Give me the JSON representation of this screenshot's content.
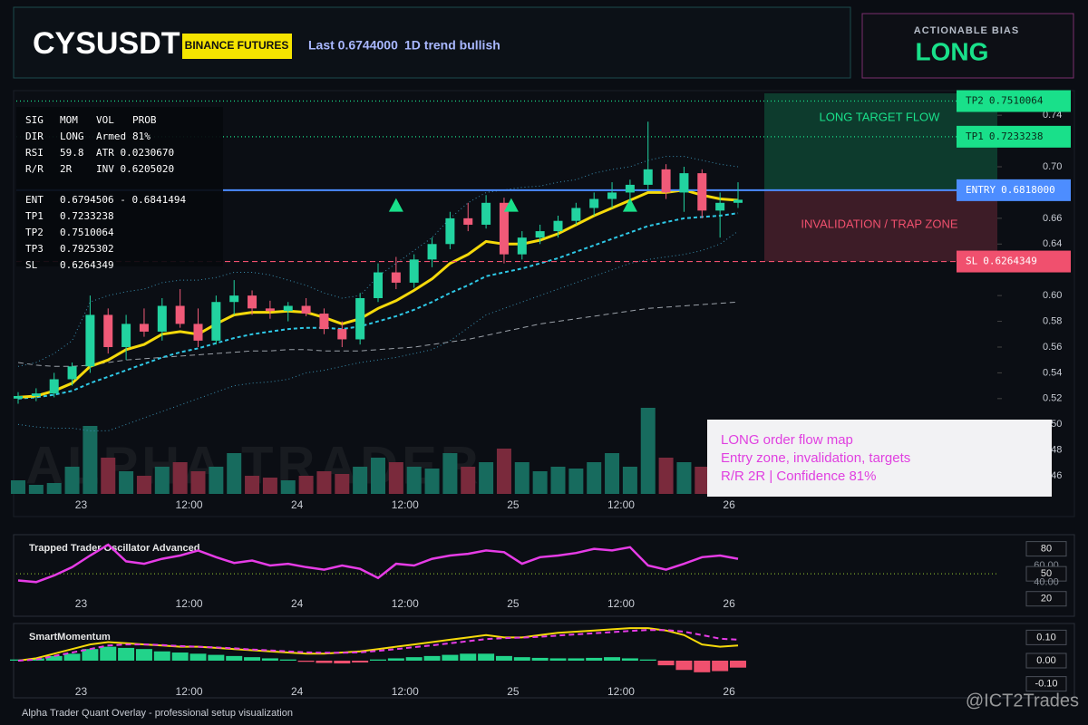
{
  "header": {
    "symbol": "CYSUSDT",
    "badge": "BINANCE FUTURES",
    "last": "Last 0.6744000",
    "trend": "1D trend bullish"
  },
  "bias": {
    "label": "ACTIONABLE BIAS",
    "value": "LONG"
  },
  "info_table": {
    "rows": [
      [
        "SIG",
        "MOM",
        "VOL",
        "PROB"
      ],
      [
        "DIR",
        "LONG",
        "Armed",
        "81%"
      ],
      [
        "RSI",
        "59.8",
        "ATR 0.0230670"
      ],
      [
        "R/R",
        "2R",
        "INV 0.6205020"
      ],
      [
        "ENT",
        "0.6794506 - 0.6841494"
      ],
      [
        "TP1",
        "0.7233238"
      ],
      [
        "TP2",
        "0.7510064"
      ],
      [
        "TP3",
        "0.7925302"
      ],
      [
        "SL",
        "0.6264349"
      ]
    ]
  },
  "overlay_box": {
    "lines": [
      "LONG order flow map",
      "Entry zone, invalidation, targets",
      "R/R 2R | Confidence 81%"
    ]
  },
  "footer": "Alpha Trader Quant Overlay - professional setup visualization",
  "credit": "@ICT2Trades",
  "chart_data": [
    {
      "type": "candlestick",
      "watermark": "ALPHA TRADER",
      "xticks": [
        {
          "value": 3.5,
          "label": "23"
        },
        {
          "value": 9.5,
          "label": "12:00"
        },
        {
          "value": 15.5,
          "label": "24"
        },
        {
          "value": 21.5,
          "label": "12:00"
        },
        {
          "value": 27.5,
          "label": "25"
        },
        {
          "value": 33.5,
          "label": "12:00"
        },
        {
          "value": 39.5,
          "label": "26"
        }
      ],
      "ylim": [
        0.446,
        0.757
      ],
      "yticks": [
        {
          "value": 0.46,
          "label": "0.46"
        },
        {
          "value": 0.48,
          "label": "0.48"
        },
        {
          "value": 0.5,
          "label": "0.50"
        },
        {
          "value": 0.52,
          "label": "0.52"
        },
        {
          "value": 0.54,
          "label": "0.54"
        },
        {
          "value": 0.56,
          "label": "0.56"
        },
        {
          "value": 0.58,
          "label": "0.58"
        },
        {
          "value": 0.6,
          "label": "0.60"
        },
        {
          "value": 0.62,
          "label": "0.62"
        },
        {
          "value": 0.64,
          "label": "0.64"
        },
        {
          "value": 0.66,
          "label": "0.66"
        },
        {
          "value": 0.68,
          "label": "0.68"
        },
        {
          "value": 0.7,
          "label": "0.70"
        },
        {
          "value": 0.72,
          "label": "0.72"
        },
        {
          "value": 0.74,
          "label": "0.74"
        }
      ],
      "up_color": "#22d3a0",
      "down_color": "#f05a78",
      "open": [
        0.52,
        0.522,
        0.524,
        0.535,
        0.545,
        0.585,
        0.56,
        0.578,
        0.572,
        0.592,
        0.578,
        0.565,
        0.595,
        0.6,
        0.59,
        0.588,
        0.592,
        0.586,
        0.574,
        0.566,
        0.598,
        0.618,
        0.61,
        0.628,
        0.64,
        0.66,
        0.655,
        0.672,
        0.632,
        0.645,
        0.65,
        0.658,
        0.668,
        0.675,
        0.68,
        0.686,
        0.698,
        0.68,
        0.695,
        0.666,
        0.672
      ],
      "high": [
        0.525,
        0.528,
        0.54,
        0.548,
        0.6,
        0.59,
        0.585,
        0.59,
        0.598,
        0.605,
        0.59,
        0.6,
        0.612,
        0.604,
        0.596,
        0.595,
        0.598,
        0.59,
        0.58,
        0.602,
        0.625,
        0.63,
        0.632,
        0.645,
        0.665,
        0.672,
        0.678,
        0.676,
        0.65,
        0.655,
        0.662,
        0.672,
        0.68,
        0.688,
        0.69,
        0.735,
        0.702,
        0.7,
        0.698,
        0.68,
        0.688
      ],
      "low": [
        0.516,
        0.518,
        0.521,
        0.53,
        0.54,
        0.555,
        0.55,
        0.568,
        0.565,
        0.575,
        0.56,
        0.562,
        0.585,
        0.585,
        0.582,
        0.58,
        0.584,
        0.57,
        0.56,
        0.562,
        0.595,
        0.605,
        0.606,
        0.622,
        0.636,
        0.65,
        0.652,
        0.625,
        0.628,
        0.64,
        0.645,
        0.655,
        0.662,
        0.668,
        0.67,
        0.682,
        0.675,
        0.665,
        0.66,
        0.645,
        0.668
      ],
      "close": [
        0.522,
        0.524,
        0.535,
        0.545,
        0.585,
        0.56,
        0.578,
        0.572,
        0.592,
        0.578,
        0.565,
        0.595,
        0.6,
        0.59,
        0.588,
        0.592,
        0.586,
        0.574,
        0.566,
        0.598,
        0.618,
        0.61,
        0.628,
        0.64,
        0.66,
        0.655,
        0.672,
        0.632,
        0.645,
        0.65,
        0.658,
        0.668,
        0.675,
        0.68,
        0.686,
        0.698,
        0.68,
        0.695,
        0.666,
        0.672,
        0.6744
      ],
      "volume": {
        "ylim": [
          0,
          100
        ],
        "up_color": "#176b5e",
        "down_color": "#7a2a3c",
        "values": [
          15,
          10,
          12,
          30,
          75,
          40,
          25,
          20,
          30,
          35,
          25,
          30,
          45,
          20,
          18,
          15,
          20,
          25,
          22,
          30,
          40,
          35,
          30,
          28,
          45,
          30,
          35,
          50,
          35,
          25,
          30,
          28,
          35,
          45,
          30,
          95,
          40,
          35,
          30,
          25,
          20
        ]
      },
      "overlays": [
        {
          "color": "#3a8fb0",
          "style": "dotted",
          "values": [
            0.545,
            0.548,
            0.555,
            0.565,
            0.595,
            0.6,
            0.603,
            0.605,
            0.61,
            0.612,
            0.612,
            0.614,
            0.618,
            0.618,
            0.616,
            0.612,
            0.608,
            0.602,
            0.598,
            0.6,
            0.615,
            0.625,
            0.635,
            0.645,
            0.66,
            0.672,
            0.68,
            0.682,
            0.684,
            0.685,
            0.688,
            0.69,
            0.695,
            0.698,
            0.7,
            0.705,
            0.708,
            0.708,
            0.705,
            0.702,
            0.7
          ]
        },
        {
          "color": "#3a8fb0",
          "style": "dotted",
          "values": [
            0.5,
            0.498,
            0.497,
            0.497,
            0.495,
            0.495,
            0.5,
            0.505,
            0.51,
            0.515,
            0.52,
            0.525,
            0.53,
            0.532,
            0.533,
            0.535,
            0.54,
            0.542,
            0.545,
            0.548,
            0.55,
            0.552,
            0.555,
            0.558,
            0.565,
            0.575,
            0.585,
            0.59,
            0.595,
            0.6,
            0.605,
            0.61,
            0.615,
            0.62,
            0.625,
            0.628,
            0.63,
            0.632,
            0.635,
            0.64,
            0.65
          ]
        },
        {
          "color": "#9aa0a8",
          "style": "dashed",
          "values": [
            0.548,
            0.546,
            0.545,
            0.545,
            0.546,
            0.548,
            0.55,
            0.551,
            0.552,
            0.553,
            0.554,
            0.555,
            0.556,
            0.557,
            0.557,
            0.558,
            0.558,
            0.557,
            0.557,
            0.557,
            0.558,
            0.559,
            0.56,
            0.562,
            0.564,
            0.566,
            0.569,
            0.572,
            0.575,
            0.578,
            0.58,
            0.582,
            0.584,
            0.586,
            0.588,
            0.59,
            0.591,
            0.592,
            0.593,
            0.594,
            0.595
          ]
        },
        {
          "color": "#2ec8e6",
          "style": "thickdash",
          "values": [
            0.52,
            0.521,
            0.523,
            0.526,
            0.532,
            0.537,
            0.542,
            0.547,
            0.552,
            0.556,
            0.559,
            0.563,
            0.567,
            0.57,
            0.572,
            0.574,
            0.575,
            0.575,
            0.574,
            0.576,
            0.58,
            0.584,
            0.589,
            0.595,
            0.602,
            0.608,
            0.615,
            0.618,
            0.621,
            0.625,
            0.629,
            0.634,
            0.639,
            0.644,
            0.649,
            0.654,
            0.657,
            0.66,
            0.661,
            0.662,
            0.664
          ]
        },
        {
          "color": "#f5d90a",
          "style": "solid",
          "values": [
            0.521,
            0.522,
            0.526,
            0.532,
            0.545,
            0.55,
            0.558,
            0.562,
            0.57,
            0.572,
            0.57,
            0.578,
            0.585,
            0.587,
            0.587,
            0.588,
            0.587,
            0.583,
            0.578,
            0.582,
            0.59,
            0.596,
            0.604,
            0.613,
            0.625,
            0.632,
            0.642,
            0.64,
            0.64,
            0.643,
            0.648,
            0.655,
            0.662,
            0.668,
            0.674,
            0.68,
            0.68,
            0.682,
            0.678,
            0.675,
            0.674
          ]
        }
      ],
      "signals": {
        "color": "#19e08a",
        "x": [
          21,
          27.4,
          34
        ],
        "y": [
          0.67,
          0.67,
          0.67
        ]
      },
      "levels": [
        {
          "name": "TP2",
          "label": "0.7510064",
          "value": 0.7510064,
          "color": "#19e08a",
          "style": "dotted"
        },
        {
          "name": "TP1",
          "label": "0.7233238",
          "value": 0.7233238,
          "color": "#19e08a",
          "style": "dotted"
        },
        {
          "name": "ENTRY",
          "label": "0.6818000",
          "value": 0.6818,
          "color": "#4d8dff",
          "style": "solid"
        },
        {
          "name": "SL",
          "label": "0.6264349",
          "value": 0.6264349,
          "color": "#f0506e",
          "style": "dashed"
        }
      ],
      "zones": {
        "target": "LONG TARGET FLOW",
        "invalidation": "INVALIDATION / TRAP ZONE"
      }
    },
    {
      "type": "line",
      "title": "Trapped Trader Oscillator Advanced",
      "color": "#e63ce6",
      "ylim": [
        -1,
        97
      ],
      "midline": 50,
      "yticks": [
        {
          "value": 80,
          "label": "80",
          "boxed": true
        },
        {
          "value": 60,
          "label": "60.00",
          "boxed": false
        },
        {
          "value": 50,
          "label": "50",
          "boxed": true
        },
        {
          "value": 40,
          "label": "40.00",
          "boxed": false
        },
        {
          "value": 20,
          "label": "20",
          "boxed": true
        }
      ],
      "values": [
        42,
        40,
        48,
        58,
        72,
        85,
        65,
        62,
        68,
        72,
        78,
        70,
        63,
        66,
        60,
        62,
        58,
        55,
        60,
        56,
        45,
        62,
        60,
        68,
        72,
        74,
        78,
        76,
        62,
        70,
        72,
        75,
        80,
        78,
        82,
        60,
        55,
        62,
        70,
        72,
        68
      ]
    },
    {
      "type": "histogram-line",
      "title": "SmartMomentum",
      "ylim": [
        -0.16,
        0.16
      ],
      "up_color": "#22d38a",
      "down_color": "#f0506e",
      "yticks": [
        {
          "value": 0.1,
          "label": "0.10"
        },
        {
          "value": 0,
          "label": "0.00"
        },
        {
          "value": -0.1,
          "label": "-0.10"
        }
      ],
      "values": [
        0.005,
        0.01,
        0.02,
        0.03,
        0.05,
        0.06,
        0.055,
        0.05,
        0.04,
        0.035,
        0.03,
        0.025,
        0.02,
        0.015,
        0.01,
        0.005,
        -0.005,
        -0.01,
        -0.012,
        -0.008,
        0.005,
        0.01,
        0.015,
        0.02,
        0.025,
        0.03,
        0.03,
        0.02,
        0.015,
        0.012,
        0.01,
        0.01,
        0.012,
        0.015,
        0.01,
        0.005,
        -0.02,
        -0.04,
        -0.05,
        -0.045,
        -0.03
      ],
      "series": [
        {
          "color": "#f5d90a",
          "style": "solid",
          "values": [
            0.0,
            0.01,
            0.03,
            0.05,
            0.07,
            0.08,
            0.075,
            0.07,
            0.065,
            0.06,
            0.06,
            0.055,
            0.05,
            0.045,
            0.04,
            0.035,
            0.03,
            0.03,
            0.035,
            0.04,
            0.05,
            0.06,
            0.07,
            0.08,
            0.09,
            0.1,
            0.11,
            0.1,
            0.1,
            0.11,
            0.12,
            0.125,
            0.13,
            0.135,
            0.14,
            0.14,
            0.13,
            0.11,
            0.07,
            0.06,
            0.065
          ]
        },
        {
          "color": "#e63ce6",
          "style": "dashed",
          "values": [
            0.0,
            0.005,
            0.02,
            0.035,
            0.05,
            0.065,
            0.07,
            0.07,
            0.067,
            0.063,
            0.06,
            0.057,
            0.053,
            0.048,
            0.044,
            0.04,
            0.036,
            0.034,
            0.034,
            0.036,
            0.042,
            0.05,
            0.058,
            0.066,
            0.075,
            0.084,
            0.093,
            0.097,
            0.099,
            0.103,
            0.108,
            0.113,
            0.118,
            0.123,
            0.128,
            0.132,
            0.132,
            0.125,
            0.11,
            0.095,
            0.09
          ]
        }
      ]
    }
  ]
}
